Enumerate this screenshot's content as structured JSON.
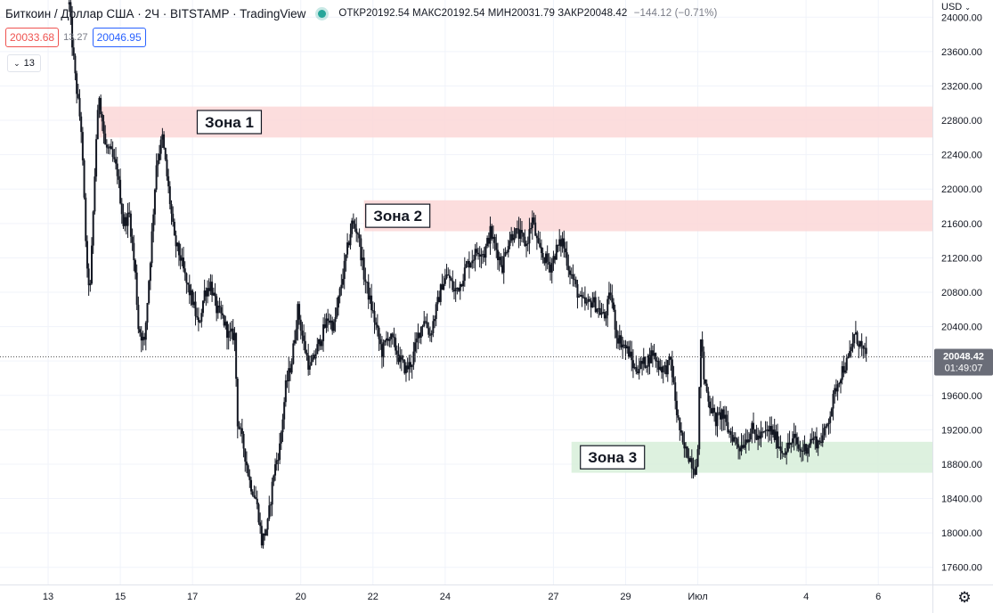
{
  "header": {
    "symbol": "Биткоин / Доллар США · 2Ч · BITSTAMP · TradingView",
    "ohlc": "ОТКР20192.54 МАКС20192.54 МИН20031.79 ЗАКР20048.42",
    "change": "−144.12 (−0.71%)"
  },
  "trade": {
    "sell_price": "20033.68",
    "spread": "13.27",
    "buy_price": "20046.95"
  },
  "indicator": {
    "label": "13",
    "chevron": "⌄"
  },
  "currency": {
    "label": "USD",
    "chevron": "⌄"
  },
  "settings": {
    "icon": "gear-icon",
    "glyph": "⚙"
  },
  "colors": {
    "candle": "#131722",
    "zone_red": "#fbd7d7",
    "zone_green": "#d7efd9",
    "grid": "#f0f3fa",
    "axis_text": "#131722",
    "price_tag_bg": "#6a6d78"
  },
  "chart_data": {
    "type": "candlestick",
    "title": "",
    "xlabel": "",
    "ylabel": "",
    "ylim": [
      17400,
      24200
    ],
    "grid": true,
    "y_ticks": [
      "17600.00",
      "18000.00",
      "18400.00",
      "18800.00",
      "19200.00",
      "19600.00",
      "20000.00",
      "20400.00",
      "20800.00",
      "21200.00",
      "21600.00",
      "22000.00",
      "22400.00",
      "22800.00",
      "23200.00",
      "23600.00",
      "24000.00"
    ],
    "x_ticks": [
      {
        "label": "13",
        "t": 0
      },
      {
        "label": "15",
        "t": 24
      },
      {
        "label": "17",
        "t": 48
      },
      {
        "label": "20",
        "t": 84
      },
      {
        "label": "22",
        "t": 108
      },
      {
        "label": "24",
        "t": 132
      },
      {
        "label": "27",
        "t": 168
      },
      {
        "label": "29",
        "t": 192
      },
      {
        "label": "Июл",
        "t": 216
      },
      {
        "label": "4",
        "t": 252
      },
      {
        "label": "6",
        "t": 276
      }
    ],
    "x_range": [
      -16,
      294
    ],
    "last_price": {
      "value": 20048.42,
      "label": "20048.42",
      "countdown": "01:49:07"
    },
    "zones": [
      {
        "label": "Зона 1",
        "y_low": 22600,
        "y_high": 22960,
        "t_start": 17
      },
      {
        "label": "Зона 2",
        "y_low": 21510,
        "y_high": 21870,
        "t_start": 105
      },
      {
        "label": "Зона 3",
        "y_low": 18700,
        "y_high": 19060,
        "t_start": 174
      }
    ],
    "price_path": [
      [
        7,
        24150
      ],
      [
        8,
        23700
      ],
      [
        9,
        23300
      ],
      [
        10,
        23000
      ],
      [
        11,
        22700
      ],
      [
        13,
        21000
      ],
      [
        14,
        20850
      ],
      [
        16,
        22600
      ],
      [
        17,
        23100
      ],
      [
        19,
        22500
      ],
      [
        21,
        22400
      ],
      [
        23,
        22200
      ],
      [
        25,
        21600
      ],
      [
        27,
        21700
      ],
      [
        29,
        21000
      ],
      [
        30,
        20400
      ],
      [
        32,
        20200
      ],
      [
        34,
        21200
      ],
      [
        36,
        22300
      ],
      [
        38,
        22600
      ],
      [
        40,
        22000
      ],
      [
        42,
        21400
      ],
      [
        44,
        21200
      ],
      [
        46,
        20900
      ],
      [
        48,
        20700
      ],
      [
        50,
        20400
      ],
      [
        52,
        20800
      ],
      [
        54,
        20900
      ],
      [
        56,
        20600
      ],
      [
        58,
        20500
      ],
      [
        60,
        20300
      ],
      [
        62,
        20300
      ],
      [
        63,
        19300
      ],
      [
        65,
        19000
      ],
      [
        67,
        18600
      ],
      [
        69,
        18400
      ],
      [
        70,
        18200
      ],
      [
        71,
        17900
      ],
      [
        72,
        18000
      ],
      [
        73,
        18100
      ],
      [
        75,
        18700
      ],
      [
        77,
        19000
      ],
      [
        79,
        19700
      ],
      [
        81,
        20000
      ],
      [
        83,
        20600
      ],
      [
        85,
        20200
      ],
      [
        87,
        19900
      ],
      [
        89,
        20100
      ],
      [
        91,
        20300
      ],
      [
        93,
        20500
      ],
      [
        95,
        20400
      ],
      [
        97,
        20800
      ],
      [
        99,
        21200
      ],
      [
        101,
        21600
      ],
      [
        103,
        21500
      ],
      [
        105,
        21000
      ],
      [
        107,
        20700
      ],
      [
        109,
        20400
      ],
      [
        111,
        20100
      ],
      [
        113,
        20300
      ],
      [
        115,
        20200
      ],
      [
        117,
        20000
      ],
      [
        119,
        19900
      ],
      [
        121,
        20000
      ],
      [
        123,
        20300
      ],
      [
        125,
        20500
      ],
      [
        127,
        20300
      ],
      [
        129,
        20600
      ],
      [
        131,
        20900
      ],
      [
        133,
        21000
      ],
      [
        135,
        20800
      ],
      [
        137,
        20900
      ],
      [
        139,
        21100
      ],
      [
        141,
        21200
      ],
      [
        143,
        21300
      ],
      [
        145,
        21250
      ],
      [
        147,
        21500
      ],
      [
        149,
        21300
      ],
      [
        151,
        21100
      ],
      [
        153,
        21400
      ],
      [
        155,
        21500
      ],
      [
        157,
        21450
      ],
      [
        159,
        21350
      ],
      [
        161,
        21650
      ],
      [
        163,
        21300
      ],
      [
        165,
        21200
      ],
      [
        167,
        21100
      ],
      [
        169,
        21300
      ],
      [
        171,
        21400
      ],
      [
        173,
        21100
      ],
      [
        175,
        20900
      ],
      [
        177,
        20700
      ],
      [
        179,
        20650
      ],
      [
        181,
        20700
      ],
      [
        183,
        20600
      ],
      [
        185,
        20500
      ],
      [
        187,
        20800
      ],
      [
        189,
        20300
      ],
      [
        191,
        20200
      ],
      [
        193,
        20100
      ],
      [
        195,
        19900
      ],
      [
        197,
        19950
      ],
      [
        199,
        20000
      ],
      [
        201,
        20100
      ],
      [
        203,
        19950
      ],
      [
        205,
        19900
      ],
      [
        207,
        20000
      ],
      [
        209,
        19400
      ],
      [
        211,
        19000
      ],
      [
        213,
        18900
      ],
      [
        215,
        18750
      ],
      [
        216,
        18950
      ],
      [
        217,
        20300
      ],
      [
        218,
        19800
      ],
      [
        220,
        19500
      ],
      [
        222,
        19300
      ],
      [
        224,
        19400
      ],
      [
        226,
        19200
      ],
      [
        228,
        19100
      ],
      [
        230,
        19000
      ],
      [
        232,
        19100
      ],
      [
        234,
        19200
      ],
      [
        236,
        19100
      ],
      [
        238,
        19150
      ],
      [
        240,
        19200
      ],
      [
        242,
        19100
      ],
      [
        244,
        18950
      ],
      [
        246,
        19000
      ],
      [
        248,
        19100
      ],
      [
        250,
        18950
      ],
      [
        252,
        19000
      ],
      [
        254,
        19100
      ],
      [
        256,
        19050
      ],
      [
        258,
        19150
      ],
      [
        260,
        19400
      ],
      [
        262,
        19700
      ],
      [
        264,
        19900
      ],
      [
        266,
        20000
      ],
      [
        268,
        20300
      ],
      [
        270,
        20200
      ],
      [
        271,
        20100
      ],
      [
        272,
        20048
      ]
    ]
  }
}
